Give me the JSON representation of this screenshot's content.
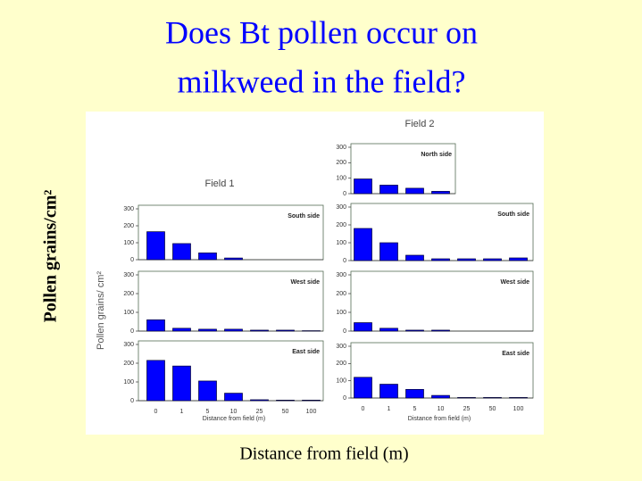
{
  "slide": {
    "title": [
      "Does Bt pollen occur on",
      "milkweed in the field?"
    ],
    "y_label": "Pollen grains/cm²",
    "x_label": "Distance from field (m)"
  },
  "figure": {
    "field_labels": [
      "Field 1",
      "Field 2"
    ],
    "y_label": "Pollen grains/ cm²",
    "x_labels": [
      "Distance from field (m)",
      "Distance from field (m)"
    ]
  },
  "chart_data": [
    {
      "type": "bar",
      "title": "South side",
      "values": [
        165,
        95,
        40,
        10
      ],
      "color": "#0000ff",
      "ylim": [
        0,
        300
      ],
      "yticks": [
        0,
        100,
        200,
        300
      ]
    },
    {
      "type": "bar",
      "title": "West side",
      "values": [
        60,
        15,
        10,
        10,
        5,
        5,
        2
      ],
      "color": "#0000ff",
      "ylim": [
        0,
        300
      ],
      "yticks": [
        0,
        100,
        200,
        300
      ]
    },
    {
      "type": "bar",
      "title": "East side",
      "categories": [
        "0",
        "1",
        "5",
        "10",
        "25",
        "50",
        "100"
      ],
      "values": [
        215,
        185,
        105,
        40,
        5,
        3,
        3
      ],
      "color": "#0000ff",
      "ylim": [
        0,
        300
      ],
      "yticks": [
        0,
        100,
        200,
        300
      ]
    },
    {
      "type": "bar",
      "title": "North side",
      "values": [
        95,
        55,
        35,
        15
      ],
      "color": "#0000ff",
      "ylim": [
        0,
        300
      ],
      "yticks": [
        0,
        100,
        200,
        300
      ]
    },
    {
      "type": "bar",
      "title": "South side",
      "values": [
        180,
        100,
        30,
        10,
        10,
        10,
        15
      ],
      "color": "#0000ff",
      "ylim": [
        0,
        300
      ],
      "yticks": [
        0,
        100,
        200,
        300
      ]
    },
    {
      "type": "bar",
      "title": "West side",
      "values": [
        45,
        15,
        5,
        5
      ],
      "color": "#0000ff",
      "ylim": [
        0,
        300
      ],
      "yticks": [
        0,
        100,
        200,
        300
      ]
    },
    {
      "type": "bar",
      "title": "East side",
      "categories": [
        "0",
        "1",
        "5",
        "10",
        "25",
        "50",
        "100"
      ],
      "values": [
        120,
        80,
        50,
        15,
        3,
        3,
        3
      ],
      "color": "#0000ff",
      "ylim": [
        0,
        300
      ],
      "yticks": [
        0,
        100,
        200,
        300
      ]
    }
  ]
}
